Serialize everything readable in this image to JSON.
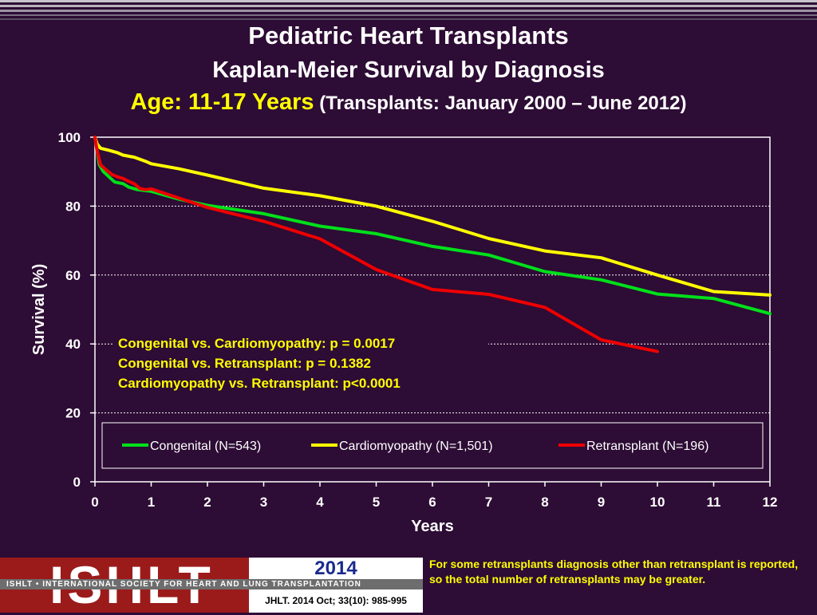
{
  "header": {
    "title": "Pediatric Heart Transplants",
    "subtitle": "Kaplan-Meier Survival by Diagnosis",
    "age_label": "Age: 11-17 Years",
    "transplant_range": "(Transplants: January 2000 – June 2012)"
  },
  "chart_data": {
    "type": "line",
    "xlabel": "Years",
    "ylabel": "Survival (%)",
    "xlim": [
      0,
      12
    ],
    "ylim": [
      0,
      100
    ],
    "xticks": [
      "0",
      "1",
      "2",
      "3",
      "4",
      "5",
      "6",
      "7",
      "8",
      "9",
      "10",
      "11",
      "12"
    ],
    "yticks": [
      "0",
      "20",
      "40",
      "60",
      "80",
      "100"
    ],
    "grid": "horizontal dashed",
    "legend_position": "bottom-center",
    "series": [
      {
        "name": "Congenital (N=543)",
        "color": "#00e01a",
        "x": [
          0,
          0.04,
          0.08,
          0.15,
          0.25,
          0.35,
          0.5,
          0.6,
          0.75,
          0.9,
          1,
          1.5,
          2,
          3,
          4,
          5,
          6,
          7,
          8,
          9,
          10,
          11,
          12
        ],
        "y": [
          100,
          96,
          92,
          90,
          88.5,
          87,
          86.5,
          85.5,
          84.8,
          84.5,
          84.3,
          82,
          80.2,
          77.8,
          74.2,
          72,
          68.3,
          65.8,
          61,
          58.6,
          54.5,
          53.2,
          48.8
        ]
      },
      {
        "name": "Cardiomyopathy (N=1,501)",
        "color": "#ffff00",
        "x": [
          0,
          0.04,
          0.1,
          0.25,
          0.4,
          0.5,
          0.7,
          0.9,
          1,
          1.5,
          2,
          3,
          4,
          5,
          6,
          7,
          8,
          9,
          10,
          11,
          12
        ],
        "y": [
          100,
          98,
          96.8,
          96.2,
          95.5,
          94.8,
          94.2,
          93,
          92.3,
          90.8,
          89,
          85.2,
          83,
          80,
          75.6,
          70.6,
          67,
          65,
          60,
          55.2,
          54.2
        ]
      },
      {
        "name": "Retransplant (N=196)",
        "color": "#ee0000",
        "x": [
          0,
          0.04,
          0.1,
          0.2,
          0.3,
          0.4,
          0.5,
          0.6,
          0.7,
          0.8,
          0.9,
          1,
          1.5,
          2,
          3,
          4,
          5,
          6,
          7,
          8,
          9,
          10
        ],
        "y": [
          100,
          96,
          92,
          90.5,
          89.2,
          88.5,
          88,
          87.2,
          86.5,
          85.1,
          84.8,
          85,
          82.3,
          79.6,
          75.6,
          70.5,
          61.6,
          55.8,
          54.4,
          50.6,
          41.2,
          37.8
        ]
      }
    ],
    "annotations": [
      "Congenital vs. Cardiomyopathy: p = 0.0017",
      "Congenital vs. Retransplant: p = 0.1382",
      "Cardiomyopathy vs. Retransplant: p<0.0001"
    ]
  },
  "footer": {
    "logo_text": "ISHLT",
    "society_text": "ISHLT • INTERNATIONAL SOCIETY FOR HEART AND LUNG TRANSPLANTATION",
    "year": "2014",
    "citation": "JHLT. 2014 Oct; 33(10): 985-995",
    "note": "For some retransplants diagnosis other than retransplant is reported, so the total number of retransplants may be greater."
  }
}
